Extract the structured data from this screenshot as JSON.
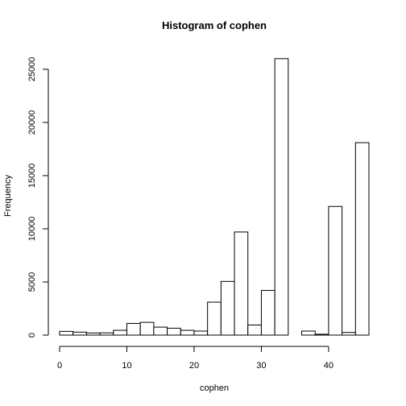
{
  "chart_data": {
    "type": "bar",
    "title": "Histogram of cophen",
    "xlabel": "cophen",
    "ylabel": "Frequency",
    "xlim": [
      0,
      46
    ],
    "ylim": [
      0,
      26500
    ],
    "x_ticks": [
      0,
      10,
      20,
      30,
      40
    ],
    "y_ticks": [
      0,
      5000,
      10000,
      15000,
      20000,
      25000
    ],
    "bin_width": 2,
    "bins": [
      {
        "start": 0,
        "end": 2,
        "value": 350
      },
      {
        "start": 2,
        "end": 4,
        "value": 280
      },
      {
        "start": 4,
        "end": 6,
        "value": 200
      },
      {
        "start": 6,
        "end": 8,
        "value": 210
      },
      {
        "start": 8,
        "end": 10,
        "value": 450
      },
      {
        "start": 10,
        "end": 12,
        "value": 1100
      },
      {
        "start": 12,
        "end": 14,
        "value": 1200
      },
      {
        "start": 14,
        "end": 16,
        "value": 750
      },
      {
        "start": 16,
        "end": 18,
        "value": 650
      },
      {
        "start": 18,
        "end": 20,
        "value": 450
      },
      {
        "start": 20,
        "end": 22,
        "value": 380
      },
      {
        "start": 22,
        "end": 24,
        "value": 3100
      },
      {
        "start": 24,
        "end": 26,
        "value": 5050
      },
      {
        "start": 26,
        "end": 28,
        "value": 9700
      },
      {
        "start": 28,
        "end": 30,
        "value": 950
      },
      {
        "start": 30,
        "end": 32,
        "value": 4200
      },
      {
        "start": 32,
        "end": 34,
        "value": 26000
      },
      {
        "start": 34,
        "end": 36,
        "value": 0
      },
      {
        "start": 36,
        "end": 38,
        "value": 380
      },
      {
        "start": 38,
        "end": 40,
        "value": 80
      },
      {
        "start": 40,
        "end": 42,
        "value": 12100
      },
      {
        "start": 42,
        "end": 44,
        "value": 250
      },
      {
        "start": 44,
        "end": 46,
        "value": 18100
      }
    ]
  }
}
